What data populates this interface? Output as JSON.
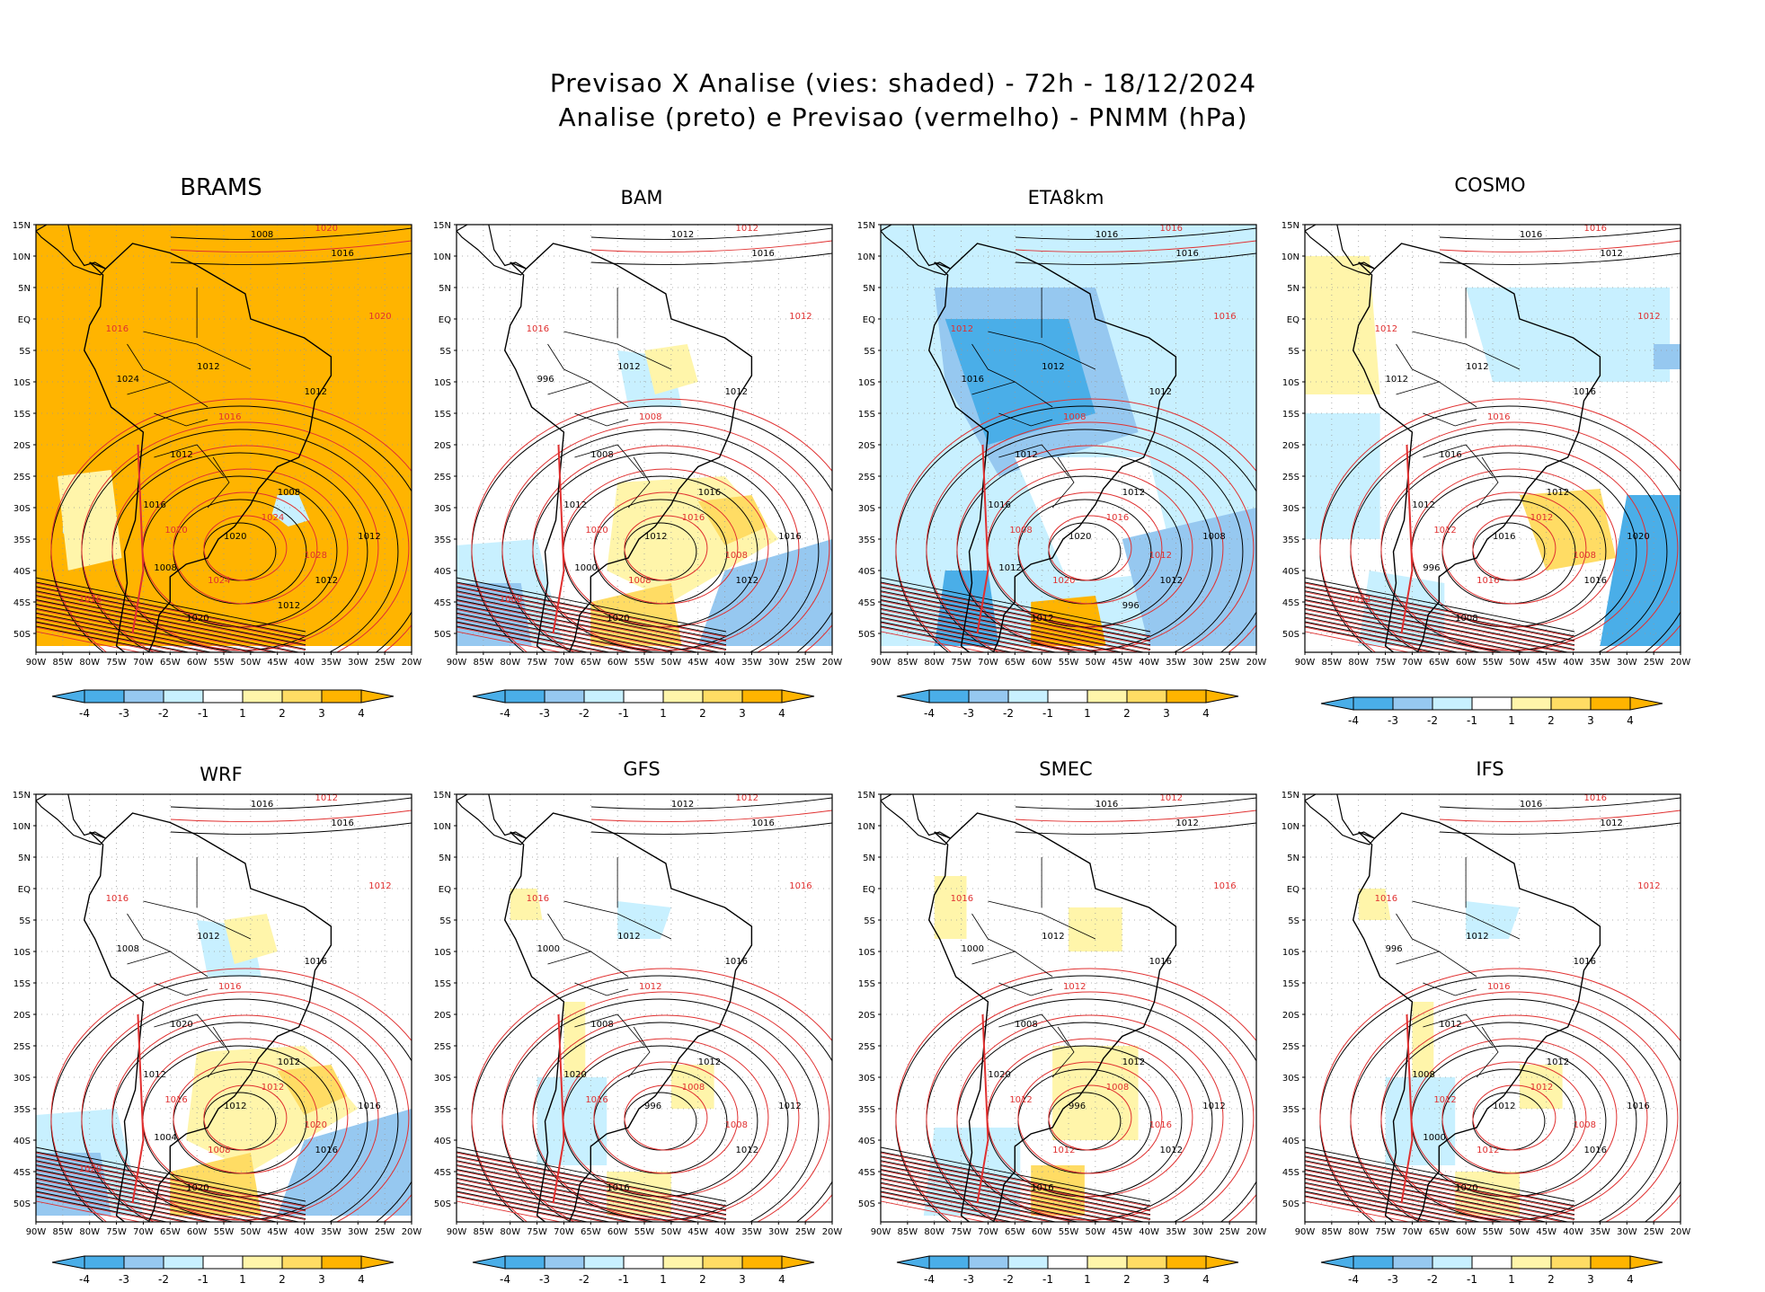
{
  "header": {
    "line1": "Previsao X Analise (vies: shaded) - 72h - 18/12/2024",
    "line2": "Analise (preto) e Previsao (vermelho) - PNMM (hPa)"
  },
  "colors": {
    "strong_negative": "#4aaee8",
    "negative": "#96c8f0",
    "weak_negative": "#c8f0ff",
    "neutral": "#ffffff",
    "weak_positive": "#fff5aa",
    "positive": "#ffdc64",
    "strong_positive": "#ffb400",
    "analysis_contour": "#000000",
    "forecast_contour": "#e03030"
  },
  "axes": {
    "lat_labels": [
      "15N",
      "10N",
      "5N",
      "EQ",
      "5S",
      "10S",
      "15S",
      "20S",
      "25S",
      "30S",
      "35S",
      "40S",
      "45S",
      "50S"
    ],
    "lon_labels": [
      "90W",
      "85W",
      "80W",
      "75W",
      "70W",
      "65W",
      "60W",
      "55W",
      "50W",
      "45W",
      "40W",
      "35W",
      "30W",
      "25W",
      "20W"
    ]
  },
  "colorbar": {
    "labels": [
      "-4",
      "-3",
      "-2",
      "-1",
      "1",
      "2",
      "3",
      "4"
    ],
    "colors": [
      "#4aaee8",
      "#96c8f0",
      "#c8f0ff",
      "#ffffff",
      "#fff5aa",
      "#ffdc64",
      "#ffb400"
    ]
  },
  "panels": [
    {
      "name": "BRAMS",
      "bias": "strong_positive",
      "labels": {
        "black": [
          "1008",
          "1016",
          "1012",
          "1012",
          "1008",
          "1012",
          "1012",
          "1016",
          "1020",
          "1012",
          "1020",
          "1024",
          "1008",
          "1012"
        ],
        "red": [
          "1020",
          "1016",
          "1020",
          "1016",
          "1024",
          "1020",
          "1028",
          "1024",
          "1016"
        ]
      }
    },
    {
      "name": "BAM",
      "bias": "mixed_positive",
      "labels": {
        "black": [
          "1012",
          "1016",
          "1012",
          "1012",
          "1016",
          "1012",
          "1008",
          "1012",
          "1020",
          "1016",
          "1012",
          "996",
          "1000"
        ],
        "red": [
          "1012",
          "1016",
          "1012",
          "1008",
          "1016",
          "1020",
          "1008",
          "1008",
          "1000"
        ]
      }
    },
    {
      "name": "ETA8km",
      "bias": "negative",
      "labels": {
        "black": [
          "1016",
          "1016",
          "1012",
          "1012",
          "1012",
          "1012",
          "1012",
          "1016",
          "1012",
          "1008",
          "1020",
          "1016",
          "1012",
          "996"
        ],
        "red": [
          "1016",
          "1012",
          "1016",
          "1008",
          "1016",
          "1008",
          "1012",
          "1020"
        ]
      }
    },
    {
      "name": "COSMO",
      "bias": "mixed",
      "labels": {
        "black": [
          "1016",
          "1012",
          "1012",
          "1016",
          "1012",
          "1016",
          "1016",
          "1012",
          "1008",
          "1020",
          "1016",
          "1012",
          "996"
        ],
        "red": [
          "1016",
          "1012",
          "1012",
          "1016",
          "1012",
          "1012",
          "1008",
          "1016",
          "1012"
        ]
      }
    },
    {
      "name": "WRF",
      "bias": "mixed_positive",
      "labels": {
        "black": [
          "1016",
          "1016",
          "1012",
          "1016",
          "1012",
          "1016",
          "1020",
          "1012",
          "1020",
          "1016",
          "1012",
          "1008",
          "1004"
        ],
        "red": [
          "1012",
          "1016",
          "1012",
          "1016",
          "1012",
          "1016",
          "1020",
          "1008",
          "1020"
        ]
      }
    },
    {
      "name": "GFS",
      "bias": "slight",
      "labels": {
        "black": [
          "1012",
          "1016",
          "1012",
          "1016",
          "1012",
          "1012",
          "1008",
          "1020",
          "1016",
          "1012",
          "996",
          "1000"
        ],
        "red": [
          "1012",
          "1016",
          "1016",
          "1012",
          "1008",
          "1016",
          "1008"
        ]
      }
    },
    {
      "name": "SMEC",
      "bias": "slight_positive",
      "labels": {
        "black": [
          "1016",
          "1012",
          "1012",
          "1016",
          "1012",
          "1012",
          "1008",
          "1020",
          "1016",
          "1012",
          "996",
          "1000"
        ],
        "red": [
          "1012",
          "1016",
          "1016",
          "1012",
          "1008",
          "1012",
          "1016",
          "1012"
        ]
      }
    },
    {
      "name": "IFS",
      "bias": "slight",
      "labels": {
        "black": [
          "1016",
          "1012",
          "1012",
          "1016",
          "1012",
          "1016",
          "1012",
          "1008",
          "1020",
          "1016",
          "1012",
          "996",
          "1000"
        ],
        "red": [
          "1016",
          "1016",
          "1012",
          "1016",
          "1012",
          "1012",
          "1008",
          "1012"
        ]
      }
    }
  ]
}
